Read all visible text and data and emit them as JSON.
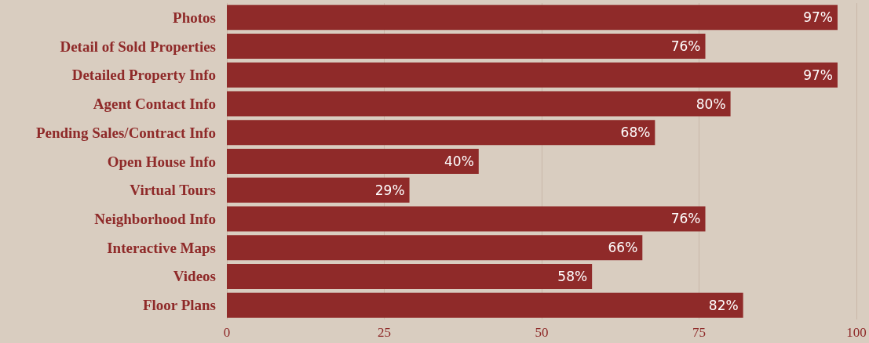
{
  "chart_data": {
    "type": "bar",
    "orientation": "horizontal",
    "categories": [
      "Photos",
      "Detail of Sold Properties",
      "Detailed Property Info",
      "Agent Contact Info",
      "Pending Sales/Contract Info",
      "Open House Info",
      "Virtual Tours",
      "Neighborhood Info",
      "Interactive Maps",
      "Videos",
      "Floor Plans"
    ],
    "values": [
      97,
      76,
      97,
      80,
      68,
      40,
      29,
      76,
      66,
      58,
      82
    ],
    "value_labels": [
      "97%",
      "76%",
      "97%",
      "80%",
      "68%",
      "40%",
      "29%",
      "76%",
      "66%",
      "58%",
      "82%"
    ],
    "color": "#8f2a29",
    "xlim": [
      0,
      100
    ],
    "xticks": [
      0,
      25,
      50,
      75,
      100
    ],
    "grid": "x"
  }
}
